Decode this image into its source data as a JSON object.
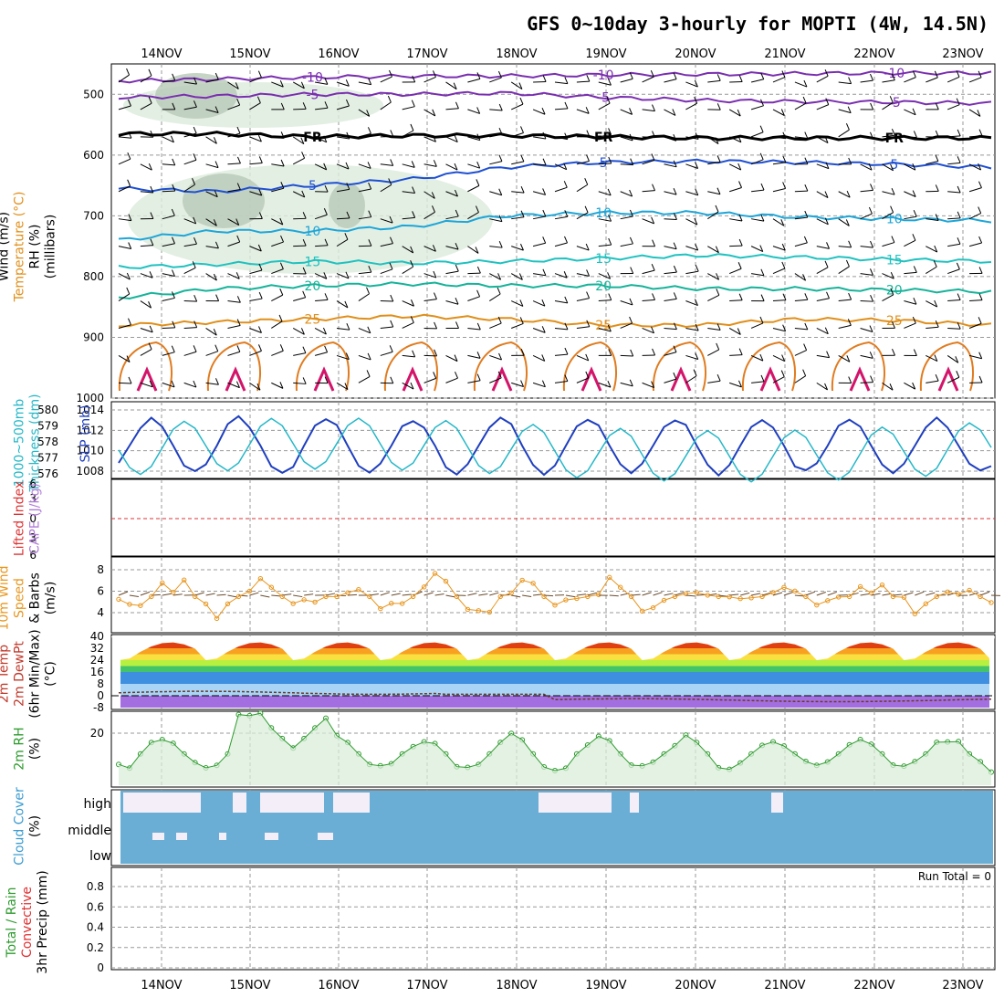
{
  "title": "GFS 0~10day 3-hourly for MOPTI (4W, 14.5N)",
  "dates": [
    "14NOV",
    "15NOV",
    "16NOV",
    "17NOV",
    "18NOV",
    "19NOV",
    "20NOV",
    "21NOV",
    "22NOV",
    "23NOV"
  ],
  "run_total": "Run Total = 0",
  "panels": {
    "upper": {
      "ylabels": [
        "Wind (m/s)",
        "Temperature (°C)",
        "RH (%)",
        "(millibars)"
      ],
      "ticks": [
        "500",
        "600",
        "700",
        "800",
        "900",
        "1000"
      ]
    },
    "slp": {
      "ylabels": [
        "1000~500mb",
        "Thickness (dm)",
        "SLP (mb)"
      ],
      "left_ticks": [
        "580",
        "579",
        "578",
        "577",
        "576"
      ],
      "right_ticks": [
        "1014",
        "1012",
        "1010",
        "1008"
      ]
    },
    "cape": {
      "ylabels": [
        "Lifted Index",
        "CAPE (J/kg)"
      ],
      "ticks": [
        "6",
        "3",
        "0",
        "3",
        "6"
      ]
    },
    "wind10": {
      "ylabels": [
        "10m Wind",
        "Speed",
        "& Barbs",
        "(m/s)"
      ],
      "ticks": [
        "8",
        "6",
        "4"
      ]
    },
    "temp": {
      "ylabels": [
        "2m Temp",
        "2m DewPt",
        "(6hr Min/Max)",
        "(°C)"
      ],
      "ticks": [
        "40",
        "32",
        "24",
        "16",
        "8",
        "0",
        "-8"
      ]
    },
    "rh2m": {
      "ylabels": [
        "2m RH",
        "(%)"
      ],
      "ticks": [
        "20"
      ]
    },
    "cloud": {
      "ylabels": [
        "Cloud Cover",
        "(%)"
      ],
      "levels": [
        "high",
        "middle",
        "low"
      ]
    },
    "precip": {
      "ylabels": [
        "Total / Rain",
        "Convective",
        "3hr Precip (mm)"
      ],
      "ticks": [
        "0.8",
        "0.6",
        "0.4",
        "0.2",
        "0"
      ]
    }
  },
  "colors": {
    "purple": "#7a2fb0",
    "black": "#000000",
    "blue": "#1f4fd1",
    "lightblue": "#1ea6d8",
    "cyan": "#20c2c0",
    "green": "#17b39a",
    "orange": "#e08f1a",
    "magenta": "#d3146a",
    "slp": "#1f3fbf",
    "thick": "#25b8c8",
    "wind10": "#e8961e",
    "rh2m": "#2e9b2e",
    "cloud": "#6aaed6"
  },
  "chart_data": [
    {
      "type": "line",
      "title": "GFS 0~10day 3-hourly for MOPTI (4W, 14.5N)",
      "ylabel": "(millibars)",
      "ylim": [
        1000,
        450
      ],
      "x": [
        "14NOV",
        "15NOV",
        "16NOV",
        "17NOV",
        "18NOV",
        "19NOV",
        "20NOV",
        "21NOV",
        "22NOV",
        "23NOV"
      ],
      "series": [
        {
          "name": "-10",
          "values": [
            478,
            475,
            472,
            470,
            470,
            468,
            467,
            466,
            465,
            465
          ]
        },
        {
          "name": "-5",
          "values": [
            505,
            503,
            500,
            500,
            498,
            505,
            510,
            512,
            513,
            515
          ]
        },
        {
          "name": "FR",
          "values": [
            565,
            565,
            570,
            568,
            568,
            570,
            572,
            572,
            572,
            572
          ]
        },
        {
          "name": "5",
          "values": [
            655,
            660,
            650,
            640,
            620,
            612,
            610,
            612,
            615,
            620
          ]
        },
        {
          "name": "10",
          "values": [
            740,
            725,
            725,
            718,
            700,
            695,
            695,
            702,
            705,
            708
          ]
        },
        {
          "name": "15",
          "values": [
            785,
            780,
            775,
            778,
            775,
            770,
            765,
            768,
            772,
            775
          ]
        },
        {
          "name": "20",
          "values": [
            835,
            820,
            815,
            812,
            815,
            815,
            820,
            820,
            822,
            825
          ]
        },
        {
          "name": "25",
          "values": [
            880,
            875,
            870,
            865,
            870,
            880,
            880,
            870,
            872,
            880
          ]
        }
      ]
    },
    {
      "type": "line",
      "ylabel": "SLP (mb)",
      "ylim": [
        1006,
        1015
      ],
      "x": [
        "14NOV",
        "15NOV",
        "16NOV",
        "17NOV",
        "18NOV",
        "19NOV",
        "20NOV",
        "21NOV",
        "22NOV",
        "23NOV"
      ],
      "series": [
        {
          "name": "SLP (mb)",
          "values": [
            1010,
            1012,
            1008,
            1013,
            1008,
            1013,
            1008,
            1014,
            1008,
            1010
          ]
        },
        {
          "name": "1000~500mb Thickness (dm)",
          "values": [
            576.5,
            578.5,
            578,
            579.5,
            578,
            579.5,
            578,
            579,
            578,
            577
          ]
        }
      ]
    },
    {
      "type": "line",
      "ylabel": "10m Wind Speed & Barbs (m/s)",
      "ylim": [
        3,
        9
      ],
      "x": [
        "14NOV",
        "15NOV",
        "16NOV",
        "17NOV",
        "18NOV",
        "19NOV",
        "20NOV",
        "21NOV",
        "22NOV",
        "23NOV"
      ],
      "series": [
        {
          "name": "10m Wind Speed",
          "values": [
            3.5,
            7,
            7.5,
            8,
            8.5,
            7.5,
            7,
            6,
            5.5,
            5
          ]
        }
      ]
    },
    {
      "type": "area",
      "ylabel": "2m Temp (°C)",
      "ylim": [
        -8,
        40
      ],
      "x": [
        "14NOV",
        "15NOV",
        "16NOV",
        "17NOV",
        "18NOV",
        "19NOV",
        "20NOV",
        "21NOV",
        "22NOV",
        "23NOV"
      ],
      "series": [
        {
          "name": "2m Temp max",
          "values": [
            36,
            36,
            36,
            36,
            36,
            35,
            35,
            35,
            35,
            35
          ]
        },
        {
          "name": "2m Temp min",
          "values": [
            24,
            24,
            24,
            24,
            24,
            24,
            24,
            24,
            24,
            24
          ]
        },
        {
          "name": "2m DewPt",
          "values": [
            2,
            3,
            3,
            2,
            0,
            -3,
            -3,
            -2,
            -2,
            -3
          ]
        }
      ]
    },
    {
      "type": "line",
      "ylabel": "2m RH (%)",
      "ylim": [
        0,
        30
      ],
      "x": [
        "14NOV",
        "15NOV",
        "16NOV",
        "17NOV",
        "18NOV",
        "19NOV",
        "20NOV",
        "21NOV",
        "22NOV",
        "23NOV"
      ],
      "series": [
        {
          "name": "2m RH",
          "values": [
            16,
            25,
            24,
            17,
            10,
            7,
            12,
            13,
            15,
            12
          ]
        }
      ]
    },
    {
      "type": "line",
      "ylabel": "3hr Precip (mm)",
      "ylim": [
        0,
        1
      ],
      "x": [
        "14NOV",
        "15NOV",
        "16NOV",
        "17NOV",
        "18NOV",
        "19NOV",
        "20NOV",
        "21NOV",
        "22NOV",
        "23NOV"
      ],
      "series": [
        {
          "name": "3hr Precip",
          "values": [
            0,
            0,
            0,
            0,
            0,
            0,
            0,
            0,
            0,
            0
          ]
        }
      ]
    }
  ]
}
